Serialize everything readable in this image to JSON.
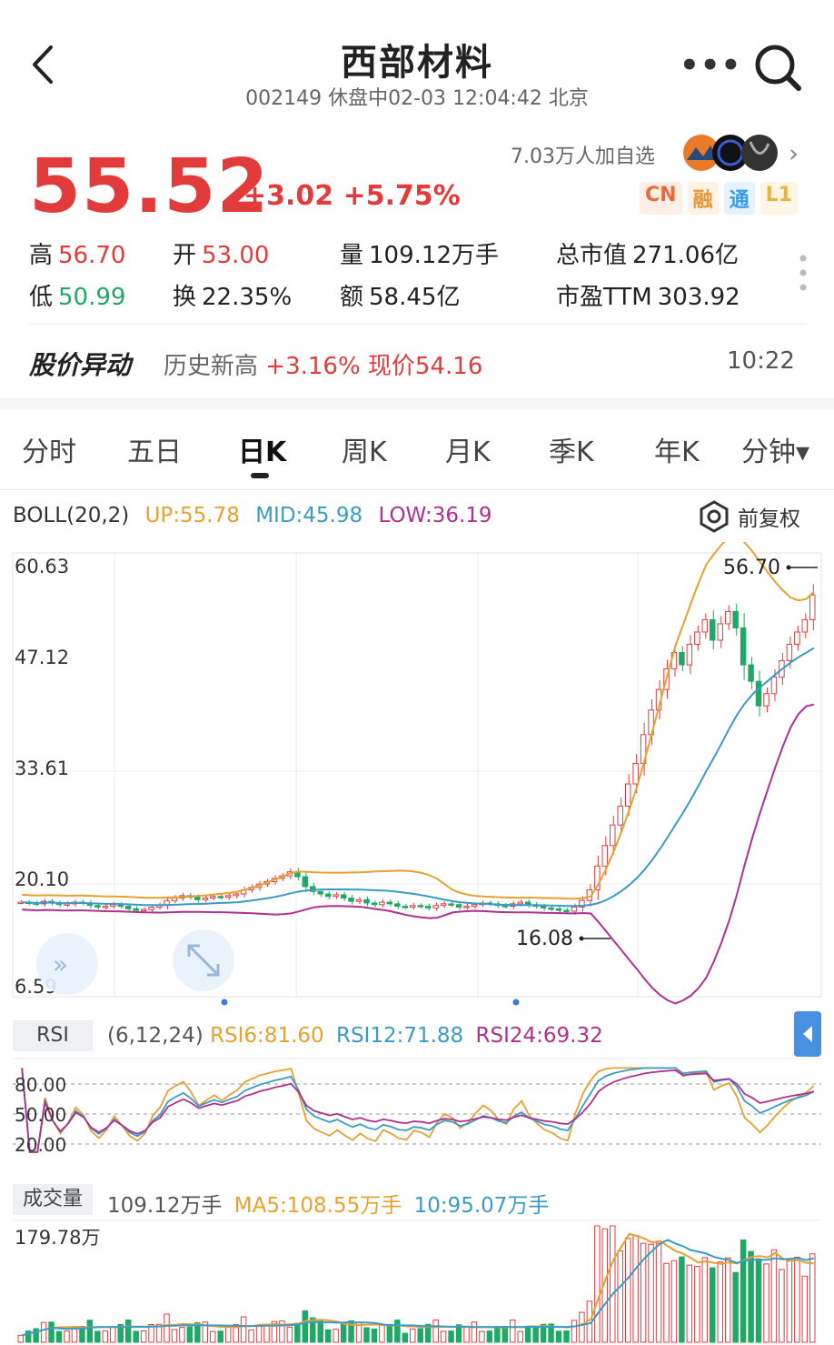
{
  "header": {
    "title": "西部材料",
    "subtitle": "002149 休盘中02-03 12:04:42 北京"
  },
  "quote": {
    "price": "55.52",
    "change": "+3.02",
    "change_pct": "+5.75%",
    "followers": "7.03万人加自选",
    "badges": [
      {
        "text": "CN",
        "color": "#e86a3a",
        "bg": "#fdeee6"
      },
      {
        "text": "融",
        "color": "#e8963a",
        "bg": "#fdf2e4"
      },
      {
        "text": "通",
        "color": "#3a9be8",
        "bg": "#e6f2fd"
      },
      {
        "text": "L1",
        "color": "#e8b53a",
        "bg": "#fdf6e4"
      }
    ]
  },
  "stats": {
    "high_label": "高",
    "high": "56.70",
    "open_label": "开",
    "open": "53.00",
    "volume_label": "量",
    "volume": "109.12万手",
    "mcap_label": "总市值",
    "mcap": "271.06亿",
    "low_label": "低",
    "low": "50.99",
    "turnover_label": "换",
    "turnover": "22.35%",
    "amount_label": "额",
    "amount": "58.45亿",
    "pe_label": "市盈TTM",
    "pe": "303.92"
  },
  "alert": {
    "title": "股价异动",
    "desc_prefix": "历史新高",
    "desc_value": "+3.16% 现价54.16",
    "time": "10:22"
  },
  "tabs": [
    "分时",
    "五日",
    "日K",
    "周K",
    "月K",
    "季K",
    "年K",
    "分钟▾"
  ],
  "active_tab": "日K",
  "boll": {
    "name": "BOLL(20,2)",
    "up": "UP:55.78",
    "mid": "MID:45.98",
    "low": "LOW:36.19",
    "adjust": "前复权",
    "colors": {
      "up": "#e8a030",
      "mid": "#3a9bc8",
      "low": "#b0308f"
    }
  },
  "rsi": {
    "name": "RSI",
    "params": "(6,12,24)",
    "rsi6": "RSI6:81.60",
    "rsi12": "RSI12:71.88",
    "rsi24": "RSI24:69.32"
  },
  "volume": {
    "name": "成交量",
    "value": "109.12万手",
    "ma5": "MA5:108.55万手",
    "ma10": "10:95.07万手",
    "max_label": "179.78万"
  },
  "chart_data": {
    "type": "candlestick",
    "y_ticks": [
      "60.63",
      "47.12",
      "33.61",
      "20.10",
      "6.59"
    ],
    "ylim": [
      6.59,
      60.63
    ],
    "max_marker": "56.70",
    "min_marker": "16.08",
    "rsi_ticks": [
      "80.00",
      "50.00",
      "20.00"
    ],
    "close": [
      18.1,
      18.0,
      17.9,
      18.2,
      18.0,
      17.8,
      17.9,
      18.1,
      18.0,
      17.7,
      17.5,
      17.6,
      17.8,
      17.6,
      17.3,
      17.1,
      17.2,
      17.5,
      17.7,
      18.3,
      18.6,
      18.9,
      18.7,
      18.4,
      18.6,
      18.8,
      18.7,
      18.9,
      19.1,
      19.6,
      19.9,
      20.3,
      20.6,
      21.0,
      21.3,
      21.8,
      21.2,
      20.0,
      19.4,
      19.1,
      18.8,
      19.0,
      18.6,
      18.2,
      18.4,
      18.0,
      17.8,
      18.1,
      17.9,
      17.6,
      17.5,
      17.7,
      17.6,
      17.4,
      17.7,
      17.9,
      17.8,
      17.5,
      17.6,
      17.8,
      18.0,
      17.9,
      17.7,
      17.6,
      17.9,
      18.1,
      17.8,
      17.6,
      17.4,
      17.3,
      17.1,
      17.0,
      17.5,
      18.3,
      19.6,
      22.5,
      25.0,
      27.5,
      29.8,
      32.5,
      35.0,
      38.5,
      41.5,
      44.0,
      46.5,
      48.5,
      47.0,
      49.5,
      51.0,
      52.5,
      50.0,
      52.0,
      53.5,
      51.5,
      47.0,
      45.0,
      42.0,
      43.5,
      45.5,
      47.5,
      49.5,
      51.0,
      52.5,
      55.52
    ],
    "vol_ma_hint": "volume spikes at right side"
  }
}
